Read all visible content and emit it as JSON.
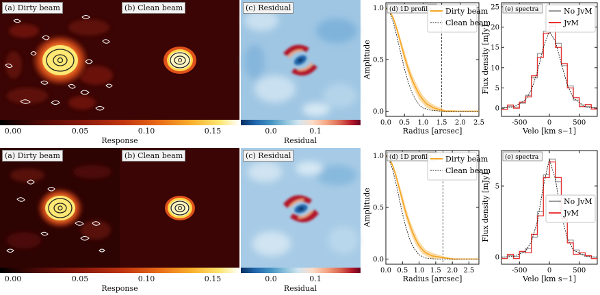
{
  "figures": [
    {
      "maps": [
        {
          "label": "(a) Dirty beam"
        },
        {
          "label": "(b) Clean beam"
        },
        {
          "label": "(c) Residual"
        }
      ],
      "response_bar": {
        "title": "Response",
        "ticks": [
          "0.00",
          "0.05",
          "0.10",
          "0.15"
        ]
      },
      "residual_bar": {
        "title": "Residual",
        "ticks": [
          "0.0",
          "0.1"
        ]
      }
    },
    {
      "maps": [
        {
          "label": "(a) Dirty beam"
        },
        {
          "label": "(b) Clean beam"
        },
        {
          "label": "(c) Residual"
        }
      ],
      "response_bar": {
        "title": "Response",
        "ticks": [
          "0.00",
          "0.05",
          "0.10",
          "0.15"
        ]
      },
      "residual_bar": {
        "title": "Residual",
        "ticks": [
          "0.0",
          "0.1"
        ]
      }
    }
  ],
  "chart_data": [
    {
      "type": "line",
      "title": "(d) 1D profile",
      "xlabel": "Radius [arcsec]",
      "ylabel": "Amplitude",
      "xlim": [
        0,
        2.5
      ],
      "ylim": [
        -0.05,
        1.05
      ],
      "xticks": [
        "0.0",
        "0.5",
        "1.0",
        "1.5",
        "2.0",
        "2.5"
      ],
      "yticks": [
        "0.0",
        "0.5",
        "1.0"
      ],
      "vline_x": 1.5,
      "legend": "top-right",
      "series": [
        {
          "name": "Dirty beam",
          "color": "#f5a623",
          "x": [
            0,
            0.1,
            0.2,
            0.3,
            0.4,
            0.5,
            0.6,
            0.7,
            0.8,
            0.9,
            1.0,
            1.1,
            1.2,
            1.3,
            1.4,
            1.5,
            1.6,
            1.8,
            2.0,
            2.2,
            2.5
          ],
          "y": [
            1.0,
            0.97,
            0.9,
            0.79,
            0.66,
            0.53,
            0.41,
            0.31,
            0.23,
            0.16,
            0.11,
            0.07,
            0.05,
            0.03,
            0.02,
            0.01,
            0.0,
            0.0,
            0.0,
            0.0,
            0.0
          ],
          "band": [
            0,
            0.01,
            0.02,
            0.03,
            0.04,
            0.05,
            0.05,
            0.05,
            0.05,
            0.05,
            0.04,
            0.04,
            0.03,
            0.03,
            0.02,
            0.02,
            0.01,
            0.01,
            0,
            0,
            0
          ]
        },
        {
          "name": "Clean beam",
          "color": "#222222",
          "dashed": true,
          "x": [
            0,
            0.1,
            0.2,
            0.3,
            0.4,
            0.5,
            0.6,
            0.7,
            0.8,
            0.9,
            1.0,
            1.2,
            1.5,
            2.0,
            2.5
          ],
          "y": [
            1.0,
            0.96,
            0.86,
            0.72,
            0.56,
            0.41,
            0.28,
            0.18,
            0.11,
            0.06,
            0.03,
            0.01,
            0.0,
            0.0,
            0.0
          ]
        }
      ]
    },
    {
      "type": "line",
      "title": "(e) spectra",
      "xlabel": "Velo [km s−1]",
      "ylabel": "Flux density [mJy]",
      "xlim": [
        -800,
        800
      ],
      "ylim": [
        -2,
        26
      ],
      "xticks": [
        "-500",
        "0",
        "500"
      ],
      "yticks": [
        "0",
        "5",
        "10",
        "15",
        "20",
        "25"
      ],
      "legend": "top-right",
      "series": [
        {
          "name": "No JvM",
          "color": "#9a9a9a",
          "step": true,
          "x": [
            -750,
            -650,
            -550,
            -450,
            -350,
            -250,
            -150,
            -50,
            50,
            150,
            250,
            350,
            450,
            550,
            650,
            750
          ],
          "y": [
            0.2,
            0.5,
            0.3,
            1.2,
            3.2,
            7.5,
            13.5,
            19.0,
            20.8,
            16.0,
            10.5,
            5.5,
            2.0,
            0.8,
            0.4,
            0.2
          ]
        },
        {
          "name": "JvM",
          "color": "#e8312f",
          "step": true,
          "x": [
            -750,
            -650,
            -550,
            -450,
            -350,
            -250,
            -150,
            -50,
            50,
            150,
            250,
            350,
            450,
            550,
            650,
            750
          ],
          "y": [
            -0.3,
            0.8,
            0.0,
            1.5,
            2.8,
            8.0,
            12.5,
            18.5,
            20.2,
            15.0,
            11.0,
            5.0,
            2.6,
            0.4,
            0.9,
            -0.2
          ]
        },
        {
          "dashed": true,
          "color": "#111111",
          "x": [
            -800,
            -600,
            -400,
            -300,
            -200,
            -100,
            0,
            100,
            200,
            300,
            400,
            600,
            800
          ],
          "y": [
            0.0,
            0.3,
            2.0,
            4.5,
            9.0,
            15.0,
            19.0,
            16.5,
            11.0,
            5.8,
            2.5,
            0.3,
            0.0
          ]
        }
      ]
    },
    {
      "type": "line",
      "title": "(d) 1D profile",
      "xlabel": "Radius [arcsec]",
      "ylabel": "Amplitude",
      "xlim": [
        0,
        2.8
      ],
      "ylim": [
        -0.05,
        1.05
      ],
      "xticks": [
        "0.0",
        "0.5",
        "1.0",
        "1.5",
        "2.0",
        "2.5"
      ],
      "yticks": [
        "0.0",
        "0.5",
        "1.0"
      ],
      "vline_x": 1.72,
      "legend": "top-right",
      "series": [
        {
          "name": "Dirty beam",
          "color": "#f5a623",
          "x": [
            0,
            0.1,
            0.2,
            0.3,
            0.4,
            0.5,
            0.6,
            0.7,
            0.8,
            0.9,
            1.0,
            1.1,
            1.2,
            1.4,
            1.6,
            1.8,
            2.0,
            2.4,
            2.8
          ],
          "y": [
            1.0,
            0.97,
            0.91,
            0.81,
            0.69,
            0.57,
            0.45,
            0.35,
            0.26,
            0.19,
            0.13,
            0.09,
            0.06,
            0.03,
            0.02,
            0.01,
            0.0,
            0.0,
            0.0
          ],
          "band": [
            0,
            0.01,
            0.02,
            0.03,
            0.04,
            0.05,
            0.05,
            0.05,
            0.05,
            0.05,
            0.04,
            0.04,
            0.03,
            0.03,
            0.02,
            0.01,
            0.01,
            0,
            0
          ]
        },
        {
          "name": "Clean beam",
          "color": "#222222",
          "dashed": true,
          "x": [
            0,
            0.1,
            0.2,
            0.3,
            0.4,
            0.5,
            0.6,
            0.7,
            0.8,
            0.9,
            1.0,
            1.2,
            1.5,
            2.0,
            2.8
          ],
          "y": [
            1.0,
            0.96,
            0.87,
            0.74,
            0.59,
            0.44,
            0.31,
            0.21,
            0.13,
            0.08,
            0.04,
            0.01,
            0.0,
            0.0,
            0.0
          ]
        }
      ]
    },
    {
      "type": "line",
      "title": "(e) spectra",
      "xlabel": "Velo [km s−1]",
      "ylabel": "Flux density [mJy]",
      "xlim": [
        -800,
        800
      ],
      "ylim": [
        -0.5,
        7.5
      ],
      "xticks": [
        "-500",
        "0",
        "500"
      ],
      "yticks": [
        "0",
        "5"
      ],
      "legend": "center-right",
      "series": [
        {
          "name": "No JvM",
          "color": "#9a9a9a",
          "step": true,
          "x": [
            -750,
            -650,
            -550,
            -450,
            -350,
            -250,
            -150,
            -50,
            50,
            150,
            250,
            350,
            450,
            550,
            650,
            750
          ],
          "y": [
            0.0,
            0.1,
            0.05,
            0.3,
            0.6,
            1.4,
            3.2,
            5.8,
            6.9,
            5.3,
            2.9,
            1.2,
            0.5,
            0.2,
            0.1,
            0.0
          ]
        },
        {
          "name": "JvM",
          "color": "#e8312f",
          "step": true,
          "x": [
            -750,
            -650,
            -550,
            -450,
            -350,
            -250,
            -150,
            -50,
            50,
            150,
            250,
            350,
            450,
            550,
            650,
            750
          ],
          "y": [
            -0.1,
            0.2,
            -0.1,
            0.4,
            0.3,
            1.6,
            2.9,
            5.6,
            6.7,
            5.6,
            2.7,
            1.0,
            0.2,
            0.3,
            0.1,
            -0.1
          ]
        },
        {
          "dashed": true,
          "color": "#111111",
          "x": [
            -800,
            -600,
            -400,
            -300,
            -200,
            -100,
            0,
            100,
            200,
            300,
            400,
            600,
            800
          ],
          "y": [
            0.0,
            0.05,
            0.4,
            1.1,
            2.5,
            5.0,
            6.9,
            5.5,
            3.0,
            1.3,
            0.5,
            0.05,
            0.0
          ]
        }
      ]
    }
  ]
}
